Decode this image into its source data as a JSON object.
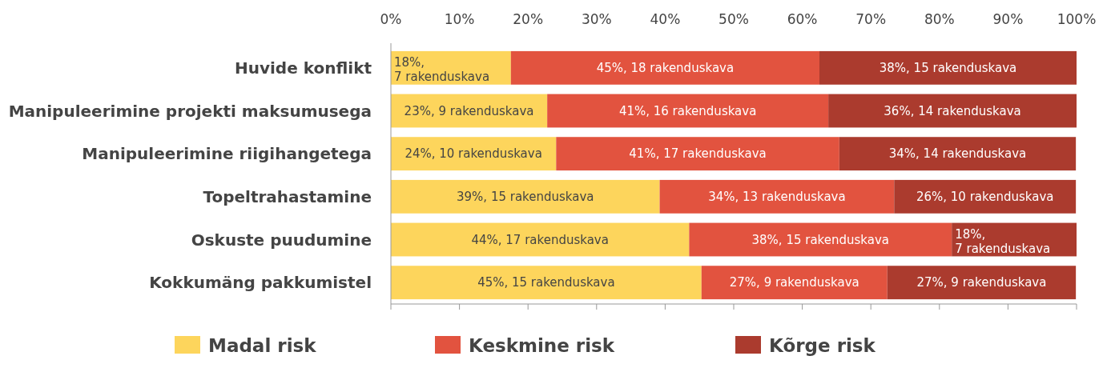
{
  "chart_data": {
    "type": "bar",
    "orientation": "horizontal",
    "stacked": true,
    "categories": [
      "Huvide konflikt",
      "Manipuleerimine projekti maksumusega",
      "Manipuleerimine riigihangetega",
      "Topeltrahastamine",
      "Oskuste puudumine",
      "Kokkumäng pakkumistel"
    ],
    "series": [
      {
        "name": "Madal risk",
        "color": "#fdd55c",
        "values": [
          17.5,
          22.8,
          24.1,
          39.2,
          43.5,
          45.3
        ],
        "value_labels": [
          "18%, 7 rakenduskava",
          "23%, 9 rakenduskava",
          "24%, 10 rakenduskava",
          "39%, 15 rakenduskava",
          "44%, 17 rakenduskava",
          "45%, 15 rakenduskava"
        ]
      },
      {
        "name": "Keskmine risk",
        "color": "#e2533f",
        "values": [
          45.0,
          41.0,
          41.3,
          34.2,
          38.3,
          27.1
        ],
        "value_labels": [
          "45%, 18 rakenduskava",
          "41%, 16 rakenduskava",
          "41%, 17 rakenduskava",
          "34%, 13 rakenduskava",
          "38%, 15 rakenduskava",
          "27%, 9 rakenduskava"
        ]
      },
      {
        "name": "Kõrge risk",
        "color": "#ab3b2e",
        "values": [
          37.5,
          36.2,
          34.5,
          26.5,
          18.2,
          27.5
        ],
        "value_labels": [
          "38%, 15 rakenduskava",
          "36%, 14 rakenduskava",
          "34%, 14 rakenduskava",
          "26%, 10 rakenduskava",
          "18%, 7 rakenduskava",
          "27%, 9 rakenduskava"
        ]
      }
    ],
    "xlim": [
      0,
      100
    ],
    "xticks": [
      {
        "value": 0,
        "label": "0%"
      },
      {
        "value": 10,
        "label": "10%"
      },
      {
        "value": 20,
        "label": "20%"
      },
      {
        "value": 30,
        "label": "30%"
      },
      {
        "value": 40,
        "label": "40%"
      },
      {
        "value": 50,
        "label": "50%"
      },
      {
        "value": 60,
        "label": "60%"
      },
      {
        "value": 70,
        "label": "70%"
      },
      {
        "value": 80,
        "label": "80%"
      },
      {
        "value": 90,
        "label": "90%"
      },
      {
        "value": 100,
        "label": "100%"
      }
    ],
    "grid": false,
    "legend": "bottom"
  }
}
